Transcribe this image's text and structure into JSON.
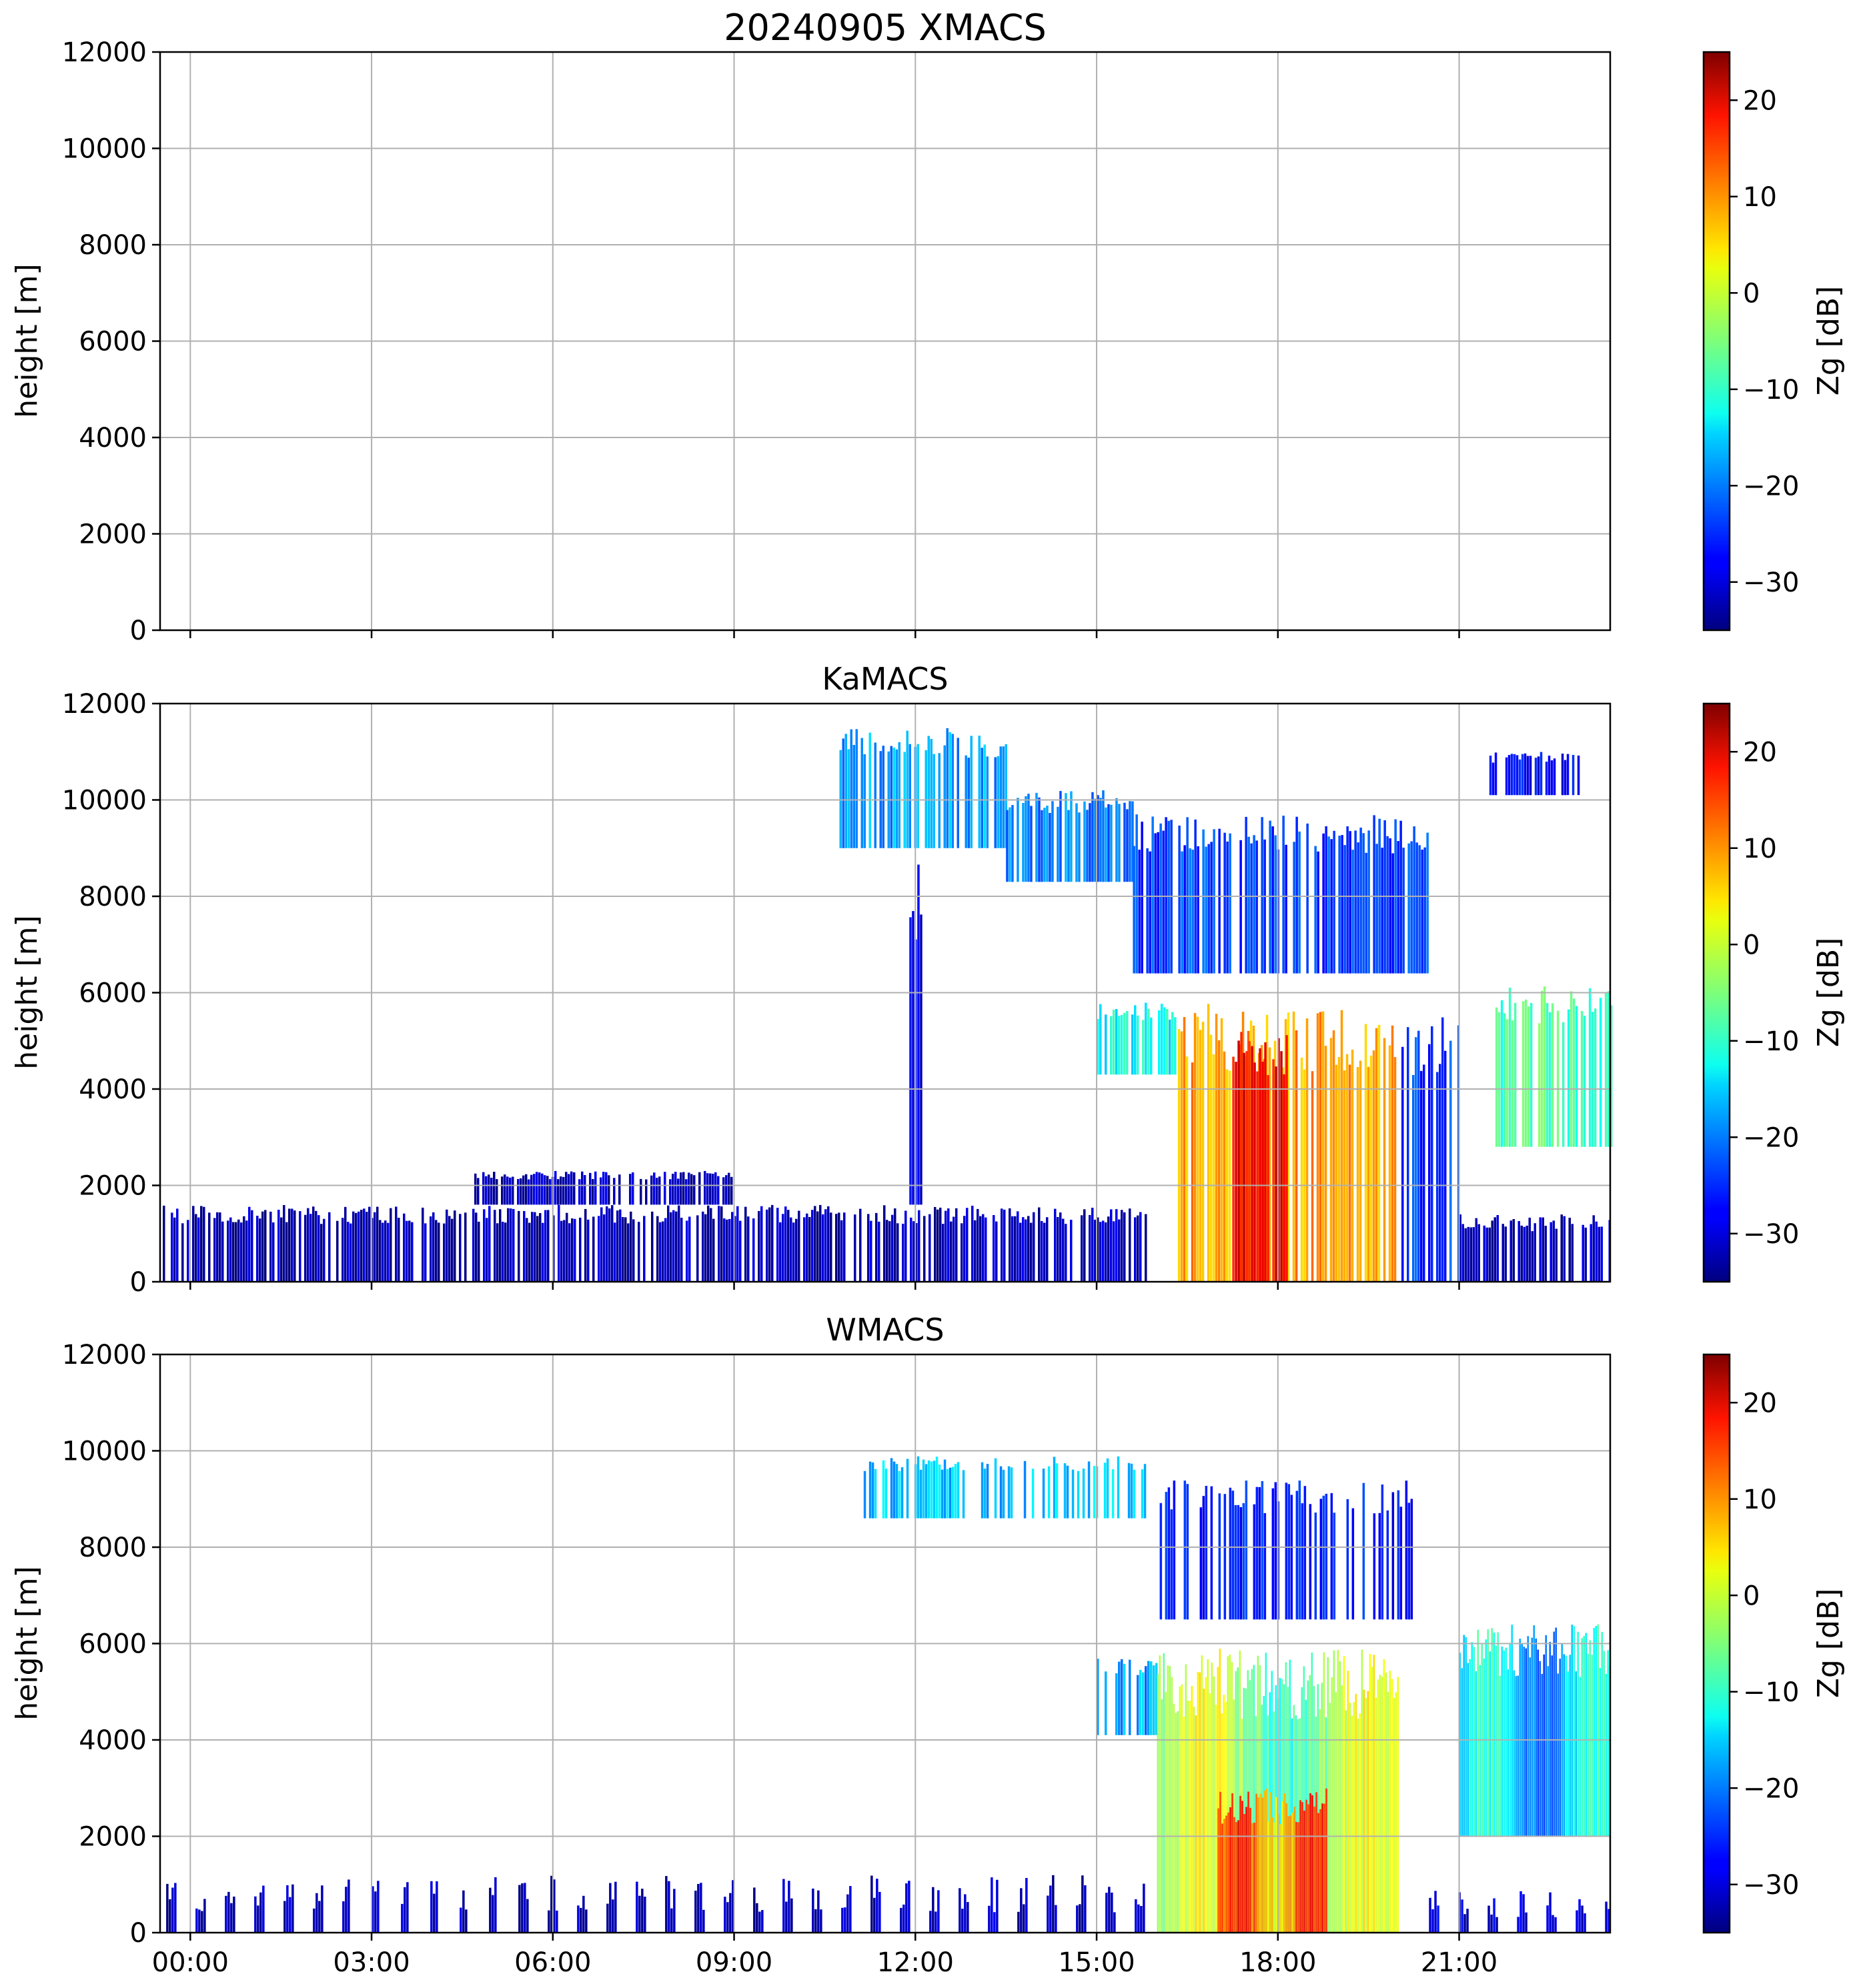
{
  "figure_title": "20240905 XMACS",
  "chart_data": [
    {
      "type": "heatmap",
      "title": "20240905 XMACS",
      "instrument": "XMACS",
      "ylabel": "height [m]",
      "ylim": [
        0,
        12000
      ],
      "yticks": [
        0,
        2000,
        4000,
        6000,
        8000,
        10000,
        12000
      ],
      "xlim_hours": [
        -0.5,
        23.5
      ],
      "xticks_hours": [
        0,
        3,
        6,
        9,
        12,
        15,
        18,
        21
      ],
      "xticklabels": [],
      "grid": true,
      "colorbar": {
        "label": "Zg [dB]",
        "vmin": -35,
        "vmax": 25,
        "ticks": [
          -30,
          -20,
          -10,
          0,
          10,
          20
        ],
        "ticklabels": [
          "−30",
          "−20",
          "−10",
          "0",
          "10",
          "20"
        ],
        "colormap": "jet"
      },
      "echo_regions": []
    },
    {
      "type": "heatmap",
      "title": "KaMACS",
      "instrument": "KaMACS",
      "ylabel": "height [m]",
      "ylim": [
        0,
        12000
      ],
      "yticks": [
        0,
        2000,
        4000,
        6000,
        8000,
        10000,
        12000
      ],
      "xlim_hours": [
        -0.5,
        23.5
      ],
      "xticks_hours": [
        0,
        3,
        6,
        9,
        12,
        15,
        18,
        21
      ],
      "xticklabels": [],
      "grid": true,
      "colorbar": {
        "label": "Zg [dB]",
        "vmin": -35,
        "vmax": 25,
        "ticks": [
          -30,
          -20,
          -10,
          0,
          10,
          20
        ],
        "ticklabels": [
          "−30",
          "−20",
          "−10",
          "0",
          "10",
          "20"
        ],
        "colormap": "jet"
      },
      "echo_regions": [
        {
          "name": "boundary-layer-clutter",
          "t0": -0.5,
          "t1": 15.8,
          "h0": 0,
          "h1": 1600,
          "zg": -32,
          "pattern": "stripes"
        },
        {
          "name": "boundary-layer-clutter-high",
          "t0": 4.7,
          "t1": 9.0,
          "h0": 1600,
          "h1": 2300,
          "zg": -32,
          "pattern": "stripes"
        },
        {
          "name": "clutter-spike",
          "t0": 11.9,
          "t1": 12.1,
          "h0": 1600,
          "h1": 8800,
          "zg": -30,
          "pattern": "stripes"
        },
        {
          "name": "cirrus-left",
          "t0": 10.7,
          "t1": 13.5,
          "h0": 9000,
          "h1": 11500,
          "zg": -18,
          "pattern": "stripes"
        },
        {
          "name": "cirrus-mid",
          "t0": 13.5,
          "t1": 15.6,
          "h0": 8300,
          "h1": 10200,
          "zg": -20,
          "pattern": "stripes"
        },
        {
          "name": "cirrus-right",
          "t0": 15.6,
          "t1": 20.5,
          "h0": 6400,
          "h1": 9700,
          "zg": -24,
          "pattern": "stripes"
        },
        {
          "name": "cirrus-east",
          "t0": 21.5,
          "t1": 23.0,
          "h0": 10100,
          "h1": 11000,
          "zg": -28,
          "pattern": "stripes"
        },
        {
          "name": "anvil-upper",
          "t0": 15.0,
          "t1": 16.3,
          "h0": 4300,
          "h1": 5800,
          "zg": -12,
          "pattern": "stripes"
        },
        {
          "name": "convective-core",
          "t0": 16.3,
          "t1": 20.0,
          "h0": 0,
          "h1": 5800,
          "zg": 8,
          "pattern": "stripes"
        },
        {
          "name": "convective-peak",
          "t0": 17.2,
          "t1": 18.2,
          "h0": 0,
          "h1": 5200,
          "zg": 18,
          "pattern": "stripes"
        },
        {
          "name": "outflow-fringe",
          "t0": 20.0,
          "t1": 21.0,
          "h0": 0,
          "h1": 5500,
          "zg": -24,
          "pattern": "stripes"
        },
        {
          "name": "late-storm",
          "t0": 21.6,
          "t1": 23.5,
          "h0": 2800,
          "h1": 6200,
          "zg": -8,
          "pattern": "stripes"
        },
        {
          "name": "late-surface",
          "t0": 21.0,
          "t1": 23.5,
          "h0": 0,
          "h1": 1400,
          "zg": -32,
          "pattern": "stripes"
        }
      ]
    },
    {
      "type": "heatmap",
      "title": "WMACS",
      "instrument": "WMACS",
      "ylabel": "height [m]",
      "ylim": [
        0,
        12000
      ],
      "yticks": [
        0,
        2000,
        4000,
        6000,
        8000,
        10000,
        12000
      ],
      "xlim_hours": [
        -0.5,
        23.5
      ],
      "xticks_hours": [
        0,
        3,
        6,
        9,
        12,
        15,
        18,
        21
      ],
      "xticklabels": [
        "00:00",
        "03:00",
        "06:00",
        "09:00",
        "12:00",
        "15:00",
        "18:00",
        "21:00"
      ],
      "grid": true,
      "colorbar": {
        "label": "Zg [dB]",
        "vmin": -35,
        "vmax": 25,
        "ticks": [
          -30,
          -20,
          -10,
          0,
          10,
          20
        ],
        "ticklabels": [
          "−30",
          "−20",
          "−10",
          "0",
          "10",
          "20"
        ],
        "colormap": "jet"
      },
      "echo_regions": [
        {
          "name": "periodic-clutter",
          "t0": -0.4,
          "t1": 15.8,
          "h0": 0,
          "h1": 1200,
          "zg": -32,
          "pattern": "periodic"
        },
        {
          "name": "cirrus-patches",
          "t0": 11.1,
          "t1": 15.8,
          "h0": 8600,
          "h1": 9900,
          "zg": -16,
          "pattern": "patches"
        },
        {
          "name": "cirrus-right",
          "t0": 16.0,
          "t1": 20.4,
          "h0": 6500,
          "h1": 9400,
          "zg": -26,
          "pattern": "patches"
        },
        {
          "name": "anvil-upper",
          "t0": 15.0,
          "t1": 16.0,
          "h0": 4100,
          "h1": 5700,
          "zg": -18,
          "pattern": "patches"
        },
        {
          "name": "convective-core",
          "t0": 16.0,
          "t1": 20.0,
          "h0": 0,
          "h1": 5900,
          "zg": -4,
          "pattern": "smooth"
        },
        {
          "name": "convective-peak",
          "t0": 17.0,
          "t1": 18.8,
          "h0": 0,
          "h1": 3000,
          "zg": 10,
          "pattern": "smooth"
        },
        {
          "name": "late-storm",
          "t0": 21.0,
          "t1": 23.5,
          "h0": 2000,
          "h1": 6400,
          "zg": -16,
          "pattern": "smooth"
        },
        {
          "name": "late-surface",
          "t0": 20.5,
          "t1": 23.5,
          "h0": 0,
          "h1": 900,
          "zg": -30,
          "pattern": "periodic"
        }
      ]
    }
  ]
}
